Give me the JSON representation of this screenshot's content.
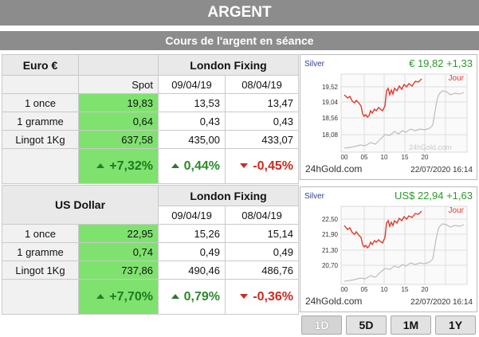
{
  "header": {
    "title": "ARGENT",
    "subtitle": "Cours de l'argent en séance"
  },
  "eur": {
    "currency": "Euro €",
    "spot_label": "Spot",
    "fixing_label": "London Fixing",
    "dates": [
      "09/04/19",
      "08/04/19"
    ],
    "rows": [
      {
        "label": "1 once",
        "spot": "19,83",
        "d1": "13,53",
        "d2": "13,47"
      },
      {
        "label": "1 gramme",
        "spot": "0,64",
        "d1": "0,43",
        "d2": "0,43"
      },
      {
        "label": "Lingot 1Kg",
        "spot": "637,58",
        "d1": "435,00",
        "d2": "433,07"
      }
    ],
    "perf": {
      "spot": "+7,32%",
      "d1": "0,44%",
      "d2": "-0,45%"
    }
  },
  "usd": {
    "currency": "US Dollar",
    "fixing_label": "London Fixing",
    "dates": [
      "09/04/19",
      "08/04/19"
    ],
    "rows": [
      {
        "label": "1 once",
        "spot": "22,95",
        "d1": "15,26",
        "d2": "15,14"
      },
      {
        "label": "1 gramme",
        "spot": "0,74",
        "d1": "0,49",
        "d2": "0,49"
      },
      {
        "label": "Lingot 1Kg",
        "spot": "737,86",
        "d1": "490,46",
        "d2": "486,76"
      }
    ],
    "perf": {
      "spot": "+7,70%",
      "d1": "0,79%",
      "d2": "-0,36%"
    }
  },
  "charts": {
    "eur": {
      "metal": "Silver",
      "quote": "€ 19,82 +1,33",
      "jour": "Jour",
      "yticks": [
        "19,52",
        "19,04",
        "18,56",
        "18,08"
      ],
      "xticks": [
        "00",
        "05",
        "10",
        "15",
        "20"
      ],
      "watermark": "24hGold.com",
      "source": "24hGold.com",
      "timestamp": "22/07/2020 16:14"
    },
    "usd": {
      "metal": "Silver",
      "quote": "US$ 22,94 +1,63",
      "jour": "Jour",
      "yticks": [
        "22,50",
        "21,90",
        "21,30",
        "20,70"
      ],
      "xticks": [
        "00",
        "05",
        "10",
        "15",
        "20"
      ],
      "watermark": "24hGold.com",
      "source": "24hGold.com",
      "timestamp": "22/07/2020 16:14"
    },
    "colors": {
      "today": "#e0392b",
      "previous": "#bdbdbd",
      "quote": "#2a9a2a",
      "metal": "#2a3fa0"
    }
  },
  "ranges": [
    "1D",
    "5D",
    "1M",
    "1Y"
  ],
  "active_range": "1D"
}
